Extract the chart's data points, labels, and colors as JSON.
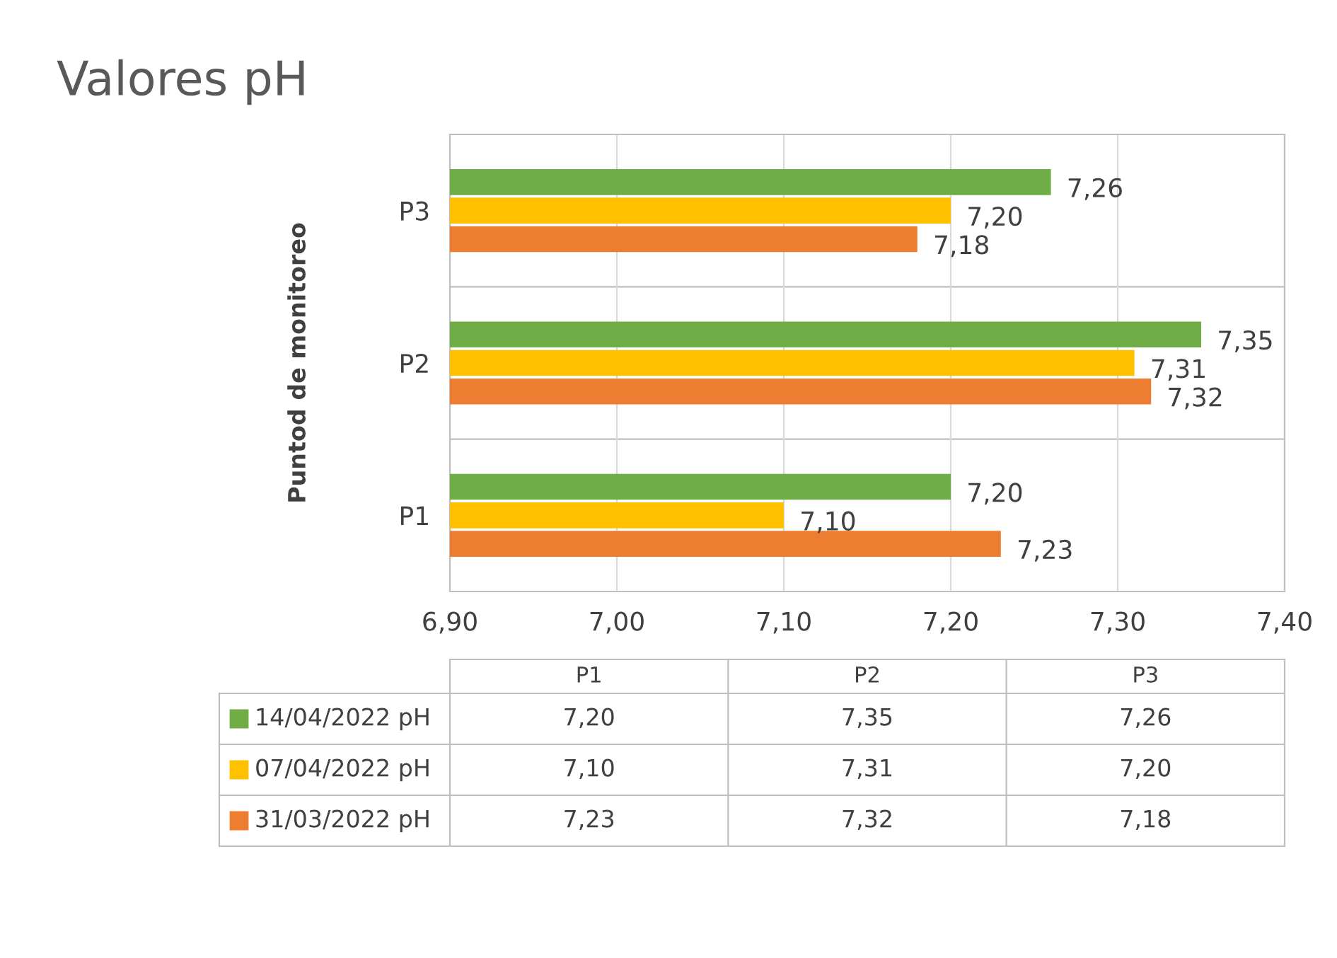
{
  "chart_data": {
    "type": "bar",
    "orientation": "horizontal",
    "title": "Valores pH",
    "ylabel": "Puntod de monitoreo",
    "categories": [
      "P3",
      "P2",
      "P1"
    ],
    "series": [
      {
        "name": "14/04/2022 pH",
        "color": "#70ad47",
        "values": [
          7.26,
          7.35,
          7.2
        ],
        "value_labels": [
          "7,26",
          "7,35",
          "7,20"
        ]
      },
      {
        "name": "07/04/2022 pH",
        "color": "#ffc000",
        "values": [
          7.2,
          7.31,
          7.1
        ],
        "value_labels": [
          "7,20",
          "7,31",
          "7,10"
        ]
      },
      {
        "name": "31/03/2022 pH",
        "color": "#ed7d31",
        "values": [
          7.18,
          7.32,
          7.23
        ],
        "value_labels": [
          "7,18",
          "7,32",
          "7,23"
        ]
      }
    ],
    "xlim": [
      6.9,
      7.4
    ],
    "xticks": [
      {
        "value": 6.9,
        "label": "6,90"
      },
      {
        "value": 7.0,
        "label": "7,00"
      },
      {
        "value": 7.1,
        "label": "7,10"
      },
      {
        "value": 7.2,
        "label": "7,20"
      },
      {
        "value": 7.3,
        "label": "7,30"
      },
      {
        "value": 7.4,
        "label": "7,40"
      }
    ],
    "grid": "x",
    "legend": "bottom"
  }
}
